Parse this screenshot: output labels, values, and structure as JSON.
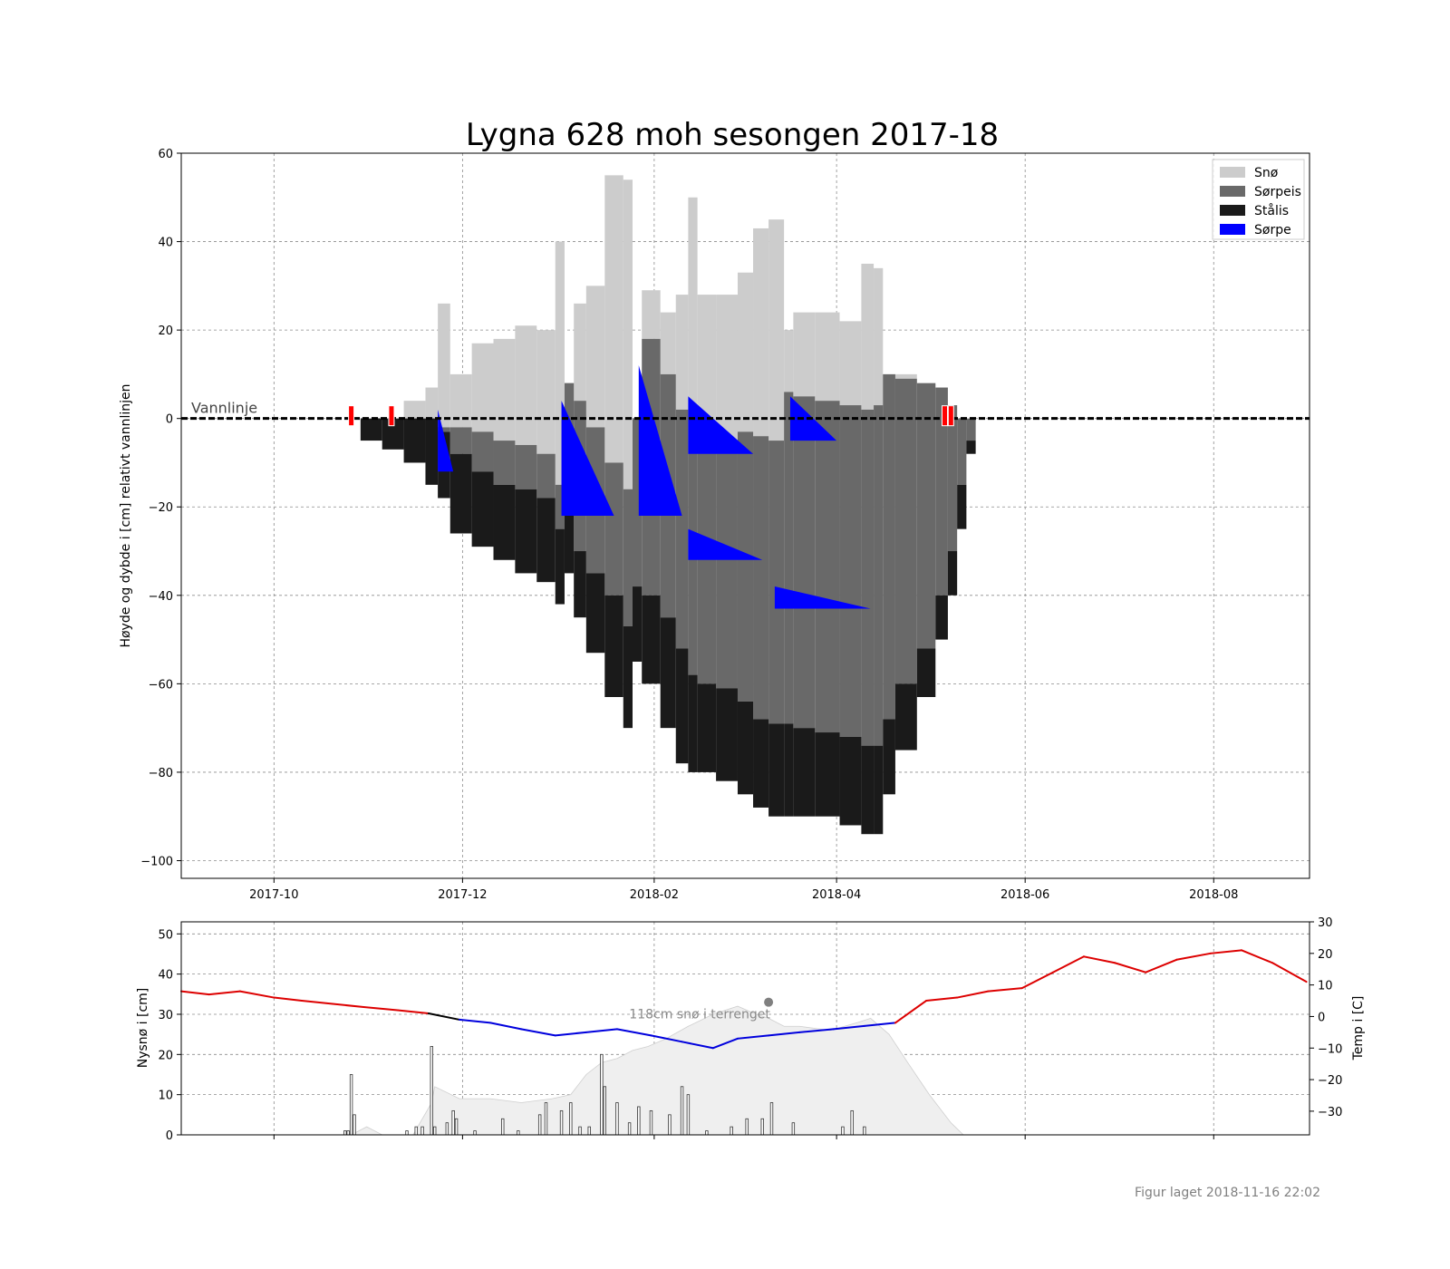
{
  "figure": {
    "title": "Lygna 628 moh sesongen 2017-18",
    "footer": "Figur laget 2018-11-16 22:02"
  },
  "chart_data": [
    {
      "type": "area",
      "panel": "top",
      "ylabel": "Høyde og dybde i [cm] relativt vannlinjen",
      "ylim": [
        -104,
        60
      ],
      "xlim": [
        "2017-09-01",
        "2018-09-01"
      ],
      "yticks": [
        60,
        40,
        20,
        0,
        -20,
        -40,
        -60,
        -80,
        -100
      ],
      "xticks": [
        "2017-10",
        "2017-12",
        "2018-02",
        "2018-04",
        "2018-06",
        "2018-08"
      ],
      "grid": true,
      "legend_position": "top-right",
      "legend": [
        {
          "name": "Snø",
          "color": "#cccccc"
        },
        {
          "name": "Sørpeis",
          "color": "#696969"
        },
        {
          "name": "Stålis",
          "color": "#1a1a1a"
        },
        {
          "name": "Sørpe",
          "color": "#0000ff"
        }
      ],
      "waterline": {
        "label": "Vannlinje",
        "y": 0
      },
      "ice_events": [
        "2017-10-26",
        "2017-11-08",
        "2018-05-06",
        "2018-05-08"
      ],
      "dates": [
        "2017-10-29",
        "2017-11-05",
        "2017-11-12",
        "2017-11-19",
        "2017-11-23",
        "2017-11-27",
        "2017-12-04",
        "2017-12-11",
        "2017-12-18",
        "2017-12-25",
        "2017-12-31",
        "2018-01-03",
        "2018-01-06",
        "2018-01-10",
        "2018-01-16",
        "2018-01-22",
        "2018-01-25",
        "2018-01-28",
        "2018-02-03",
        "2018-02-08",
        "2018-02-12",
        "2018-02-15",
        "2018-02-21",
        "2018-02-28",
        "2018-03-05",
        "2018-03-10",
        "2018-03-15",
        "2018-03-18",
        "2018-03-25",
        "2018-04-02",
        "2018-04-09",
        "2018-04-13",
        "2018-04-16",
        "2018-04-20",
        "2018-04-27",
        "2018-05-03",
        "2018-05-07",
        "2018-05-10",
        "2018-05-13"
      ],
      "snow_top": [
        0,
        0,
        4,
        7,
        26,
        10,
        17,
        18,
        21,
        20,
        40,
        0,
        26,
        30,
        55,
        54,
        0,
        29,
        24,
        28,
        50,
        28,
        28,
        33,
        43,
        45,
        20,
        24,
        24,
        22,
        35,
        34,
        0,
        10,
        8,
        7,
        3,
        0,
        0
      ],
      "sorpeis_top": [
        0,
        0,
        0,
        0,
        -2,
        -2,
        -3,
        -5,
        -6,
        -8,
        -15,
        8,
        4,
        -2,
        -10,
        -16,
        0,
        18,
        10,
        2,
        -5,
        -5,
        -5,
        -3,
        -4,
        -5,
        6,
        5,
        4,
        3,
        2,
        3,
        10,
        9,
        8,
        7,
        3,
        0,
        0
      ],
      "staalis_top": [
        0,
        0,
        0,
        0,
        -3,
        -8,
        -12,
        -15,
        -16,
        -18,
        -25,
        -20,
        -30,
        -35,
        -40,
        -47,
        -38,
        -40,
        -45,
        -52,
        -58,
        -60,
        -61,
        -64,
        -68,
        -69,
        -69,
        -70,
        -71,
        -72,
        -74,
        -74,
        -68,
        -60,
        -52,
        -40,
        -30,
        -15,
        -5
      ],
      "bottom": [
        -5,
        -7,
        -10,
        -15,
        -18,
        -26,
        -29,
        -32,
        -35,
        -37,
        -42,
        -35,
        -45,
        -53,
        -63,
        -70,
        -55,
        -60,
        -70,
        -78,
        -80,
        -80,
        -82,
        -85,
        -88,
        -90,
        -90,
        -90,
        -90,
        -92,
        -94,
        -94,
        -85,
        -75,
        -63,
        -50,
        -40,
        -25,
        -8
      ],
      "sorpe": [
        {
          "start": "2017-11-23",
          "end": "2017-11-28",
          "top": 2,
          "bottom": -12
        },
        {
          "start": "2018-01-02",
          "end": "2018-01-19",
          "top": 4,
          "bottom": -22
        },
        {
          "start": "2018-01-27",
          "end": "2018-02-10",
          "top": 12,
          "bottom": -22
        },
        {
          "start": "2018-02-12",
          "end": "2018-03-05",
          "top": 5,
          "bottom": -8
        },
        {
          "start": "2018-02-12",
          "end": "2018-03-08",
          "top": -25,
          "bottom": -32
        },
        {
          "start": "2018-03-17",
          "end": "2018-04-01",
          "top": 5,
          "bottom": -5
        },
        {
          "start": "2018-03-12",
          "end": "2018-04-12",
          "top": -38,
          "bottom": -43
        }
      ]
    },
    {
      "type": "bar",
      "panel": "bottom",
      "ylabel": "Nysnø i [cm]",
      "y2label": "Temp i [C]",
      "ylim": [
        0,
        53
      ],
      "y2lim": [
        -37.5,
        30
      ],
      "yticks": [
        0,
        10,
        20,
        30,
        40,
        50
      ],
      "y2ticks": [
        -30,
        -20,
        -10,
        0,
        10,
        20,
        30
      ],
      "annotation": "118cm snø i terrenget",
      "annotation_point": {
        "date": "2018-03-10",
        "value": 33
      },
      "new_snow": [
        {
          "date": "2017-10-24",
          "value": 1
        },
        {
          "date": "2017-10-25",
          "value": 1
        },
        {
          "date": "2017-10-26",
          "value": 15
        },
        {
          "date": "2017-10-27",
          "value": 5
        },
        {
          "date": "2017-11-13",
          "value": 1
        },
        {
          "date": "2017-11-16",
          "value": 2
        },
        {
          "date": "2017-11-18",
          "value": 2
        },
        {
          "date": "2017-11-21",
          "value": 22
        },
        {
          "date": "2017-11-22",
          "value": 2
        },
        {
          "date": "2017-11-26",
          "value": 3
        },
        {
          "date": "2017-11-28",
          "value": 6
        },
        {
          "date": "2017-11-29",
          "value": 4
        },
        {
          "date": "2017-12-05",
          "value": 1
        },
        {
          "date": "2017-12-14",
          "value": 4
        },
        {
          "date": "2017-12-19",
          "value": 1
        },
        {
          "date": "2017-12-26",
          "value": 5
        },
        {
          "date": "2017-12-28",
          "value": 8
        },
        {
          "date": "2018-01-02",
          "value": 6
        },
        {
          "date": "2018-01-05",
          "value": 8
        },
        {
          "date": "2018-01-08",
          "value": 2
        },
        {
          "date": "2018-01-11",
          "value": 2
        },
        {
          "date": "2018-01-15",
          "value": 20
        },
        {
          "date": "2018-01-16",
          "value": 12
        },
        {
          "date": "2018-01-20",
          "value": 8
        },
        {
          "date": "2018-01-24",
          "value": 3
        },
        {
          "date": "2018-01-27",
          "value": 7
        },
        {
          "date": "2018-01-31",
          "value": 6
        },
        {
          "date": "2018-02-06",
          "value": 5
        },
        {
          "date": "2018-02-10",
          "value": 12
        },
        {
          "date": "2018-02-12",
          "value": 10
        },
        {
          "date": "2018-02-18",
          "value": 1
        },
        {
          "date": "2018-02-26",
          "value": 2
        },
        {
          "date": "2018-03-03",
          "value": 4
        },
        {
          "date": "2018-03-08",
          "value": 4
        },
        {
          "date": "2018-03-11",
          "value": 8
        },
        {
          "date": "2018-03-18",
          "value": 3
        },
        {
          "date": "2018-04-03",
          "value": 2
        },
        {
          "date": "2018-04-06",
          "value": 6
        },
        {
          "date": "2018-04-10",
          "value": 2
        }
      ],
      "snow_depth_terrain": {
        "dates": [
          "2017-10-26",
          "2017-10-31",
          "2017-11-05",
          "2017-11-15",
          "2017-11-21",
          "2017-11-22",
          "2017-11-30",
          "2017-12-10",
          "2017-12-20",
          "2017-12-30",
          "2018-01-05",
          "2018-01-10",
          "2018-01-15",
          "2018-01-20",
          "2018-01-25",
          "2018-01-30",
          "2018-02-05",
          "2018-02-12",
          "2018-02-20",
          "2018-02-28",
          "2018-03-06",
          "2018-03-10",
          "2018-03-15",
          "2018-03-20",
          "2018-03-30",
          "2018-04-08",
          "2018-04-12",
          "2018-04-18",
          "2018-04-24",
          "2018-05-01",
          "2018-05-08",
          "2018-05-12"
        ],
        "values": [
          0,
          2,
          0,
          0,
          8,
          12,
          9,
          9,
          8,
          9,
          10,
          15,
          18,
          19,
          21,
          22,
          24,
          27,
          30,
          32,
          30,
          29,
          27,
          27,
          26,
          28,
          29,
          25,
          18,
          10,
          3,
          0
        ]
      },
      "temperature": {
        "dates": [
          "2017-09-01",
          "2017-09-10",
          "2017-09-20",
          "2017-10-01",
          "2017-10-10",
          "2017-10-20",
          "2017-10-30",
          "2017-11-10",
          "2017-11-20",
          "2017-11-30",
          "2017-12-10",
          "2017-12-20",
          "2017-12-31",
          "2018-01-10",
          "2018-01-20",
          "2018-01-31",
          "2018-02-10",
          "2018-02-20",
          "2018-02-28",
          "2018-03-10",
          "2018-03-20",
          "2018-03-31",
          "2018-04-10",
          "2018-04-20",
          "2018-04-30",
          "2018-05-10",
          "2018-05-20",
          "2018-05-31",
          "2018-06-10",
          "2018-06-20",
          "2018-06-30",
          "2018-07-10",
          "2018-07-20",
          "2018-07-31",
          "2018-08-10",
          "2018-08-20",
          "2018-08-31"
        ],
        "values": [
          8,
          7,
          8,
          6,
          5,
          4,
          3,
          2,
          1,
          -1,
          -2,
          -4,
          -6,
          -5,
          -4,
          -6,
          -8,
          -10,
          -7,
          -6,
          -5,
          -4,
          -3,
          -2,
          5,
          6,
          8,
          9,
          14,
          19,
          17,
          14,
          18,
          20,
          21,
          17,
          11
        ]
      },
      "temp_colors": {
        "above_zero": "#dd0000",
        "below_zero": "#0000dd",
        "near_zero": "#000000"
      }
    }
  ]
}
